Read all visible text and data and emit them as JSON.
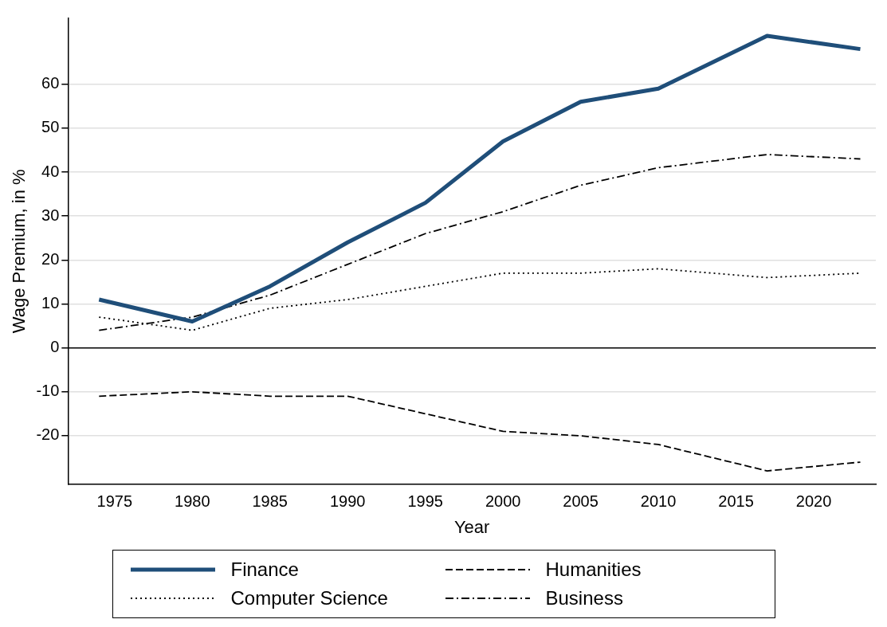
{
  "chart_data": {
    "type": "line",
    "xlabel": "Year",
    "ylabel": "Wage Premium, in %",
    "x": [
      1974,
      1980,
      1985,
      1990,
      1995,
      2000,
      2005,
      2010,
      2017,
      2023
    ],
    "series": [
      {
        "name": "Finance",
        "color": "#1f4e79",
        "line_style": "solid",
        "values": [
          11,
          6,
          14,
          24,
          33,
          47,
          56,
          59,
          71,
          68
        ]
      },
      {
        "name": "Humanities",
        "color": "#000000",
        "line_style": "dashed",
        "values": [
          -11,
          -10,
          -11,
          -11,
          -15,
          -19,
          -20,
          -22,
          -28,
          -26
        ]
      },
      {
        "name": "Computer Science",
        "color": "#000000",
        "line_style": "dotted",
        "values": [
          7,
          4,
          9,
          11,
          14,
          17,
          17,
          18,
          16,
          17
        ]
      },
      {
        "name": "Business",
        "color": "#000000",
        "line_style": "dashdot",
        "values": [
          4,
          7,
          12,
          19,
          26,
          31,
          37,
          41,
          44,
          43
        ]
      }
    ],
    "xlim": [
      1972,
      2024
    ],
    "xticks": [
      1975,
      1980,
      1985,
      1990,
      1995,
      2000,
      2005,
      2010,
      2015,
      2020
    ],
    "ylim": [
      -31,
      75
    ],
    "yticks": [
      -20,
      -10,
      0,
      10,
      20,
      30,
      40,
      50,
      60
    ],
    "ref_lines": [
      {
        "axis": "y",
        "value": 0,
        "color": "#000000"
      }
    ],
    "grid": "y",
    "legend": "bottom",
    "marker": "none"
  }
}
